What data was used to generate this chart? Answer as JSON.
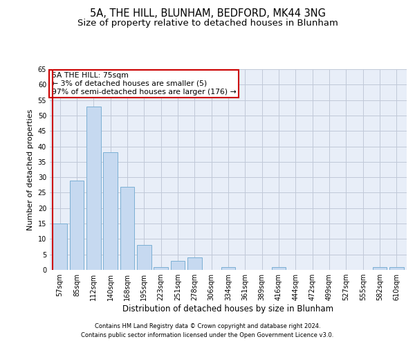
{
  "title1": "5A, THE HILL, BLUNHAM, BEDFORD, MK44 3NG",
  "title2": "Size of property relative to detached houses in Blunham",
  "xlabel": "Distribution of detached houses by size in Blunham",
  "ylabel": "Number of detached properties",
  "categories": [
    "57sqm",
    "85sqm",
    "112sqm",
    "140sqm",
    "168sqm",
    "195sqm",
    "223sqm",
    "251sqm",
    "278sqm",
    "306sqm",
    "334sqm",
    "361sqm",
    "389sqm",
    "416sqm",
    "444sqm",
    "472sqm",
    "499sqm",
    "527sqm",
    "555sqm",
    "582sqm",
    "610sqm"
  ],
  "values": [
    15,
    29,
    53,
    38,
    27,
    8,
    1,
    3,
    4,
    0,
    1,
    0,
    0,
    1,
    0,
    0,
    0,
    0,
    0,
    1,
    1
  ],
  "bar_color": "#c6d9f0",
  "bar_edge_color": "#7bafd4",
  "highlight_line_color": "#cc0000",
  "annotation_text": "5A THE HILL: 75sqm\n← 3% of detached houses are smaller (5)\n97% of semi-detached houses are larger (176) →",
  "annotation_box_color": "#ffffff",
  "annotation_box_edge_color": "#cc0000",
  "ylim": [
    0,
    65
  ],
  "yticks": [
    0,
    5,
    10,
    15,
    20,
    25,
    30,
    35,
    40,
    45,
    50,
    55,
    60,
    65
  ],
  "grid_color": "#c0c8d8",
  "bg_color": "#e8eef8",
  "footer1": "Contains HM Land Registry data © Crown copyright and database right 2024.",
  "footer2": "Contains public sector information licensed under the Open Government Licence v3.0.",
  "title1_fontsize": 10.5,
  "title2_fontsize": 9.5,
  "tick_fontsize": 7,
  "xlabel_fontsize": 8.5,
  "ylabel_fontsize": 8,
  "annotation_fontsize": 7.8,
  "footer_fontsize": 6.0
}
